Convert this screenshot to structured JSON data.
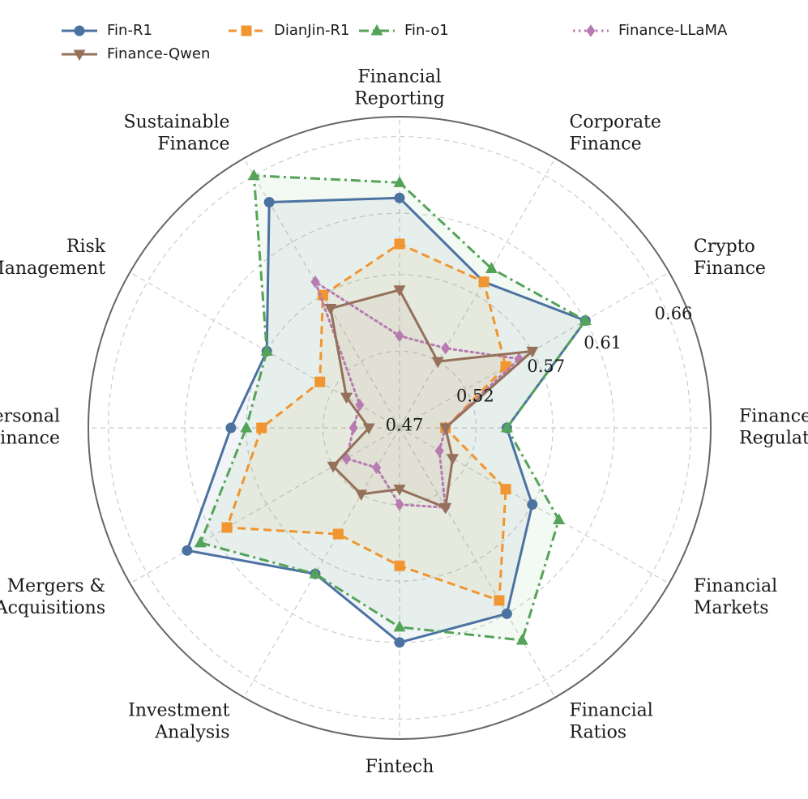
{
  "chart_data": {
    "type": "radar",
    "axes": [
      "Finance Regulation",
      "Crypto Finance",
      "Corporate Finance",
      "Financial Reporting",
      "Sustainable Finance",
      "Risk Management",
      "Personal Finance",
      "Mergers & Acquisitions",
      "Investment Analysis",
      "Fintech",
      "Financial Ratios",
      "Financial Markets"
    ],
    "axis_label_lines": [
      [
        "Finance",
        "Regulation"
      ],
      [
        "Crypto",
        "Finance"
      ],
      [
        "Corporate",
        "Finance"
      ],
      [
        "Financial",
        "Reporting"
      ],
      [
        "Sustainable",
        "Finance"
      ],
      [
        "Risk",
        "Management"
      ],
      [
        "Personal",
        "Finance"
      ],
      [
        "Mergers &",
        "Acquisitions"
      ],
      [
        "Investment",
        "Analysis"
      ],
      [
        "Fintech"
      ],
      [
        "Financial",
        "Ratios"
      ],
      [
        "Financial",
        "Markets"
      ]
    ],
    "rlim": [
      0.47,
      0.673
    ],
    "radial_ticks": [
      {
        "value": 0.47,
        "label": "0.47"
      },
      {
        "value": 0.52,
        "label": "0.52"
      },
      {
        "value": 0.57,
        "label": "0.57"
      },
      {
        "value": 0.61,
        "label": "0.61"
      },
      {
        "value": 0.66,
        "label": "0.66"
      }
    ],
    "grid": true,
    "legend_position": "top",
    "series": [
      {
        "name": "Fin-R1",
        "color": "#4C72A2",
        "marker": "circle",
        "dash": "solid",
        "fill": true,
        "values": [
          0.54,
          0.61,
          0.58,
          0.62,
          0.64,
          0.57,
          0.58,
          0.63,
          0.58,
          0.61,
          0.61,
          0.57
        ]
      },
      {
        "name": "DianJin-R1",
        "color": "#F0952F",
        "marker": "square",
        "dash": "dashed",
        "fill": true,
        "values": [
          0.5,
          0.55,
          0.58,
          0.59,
          0.57,
          0.53,
          0.56,
          0.6,
          0.55,
          0.56,
          0.6,
          0.55
        ]
      },
      {
        "name": "Fin-o1",
        "color": "#55A358",
        "marker": "triangle-up",
        "dash": "dashdot",
        "fill": true,
        "values": [
          0.54,
          0.61,
          0.59,
          0.63,
          0.66,
          0.57,
          0.57,
          0.62,
          0.58,
          0.6,
          0.63,
          0.59
        ]
      },
      {
        "name": "Finance-LLaMA",
        "color": "#B77BB1",
        "marker": "diamond",
        "dash": "dotted",
        "fill": false,
        "values": [
          0.5,
          0.56,
          0.53,
          0.53,
          0.58,
          0.5,
          0.5,
          0.51,
          0.5,
          0.52,
          0.53,
          0.5
        ]
      },
      {
        "name": "Finance-Qwen",
        "color": "#95705A",
        "marker": "triangle-down",
        "dash": "solid",
        "fill": true,
        "values": [
          0.5,
          0.57,
          0.52,
          0.56,
          0.56,
          0.51,
          0.49,
          0.52,
          0.52,
          0.51,
          0.53,
          0.51
        ]
      }
    ]
  }
}
